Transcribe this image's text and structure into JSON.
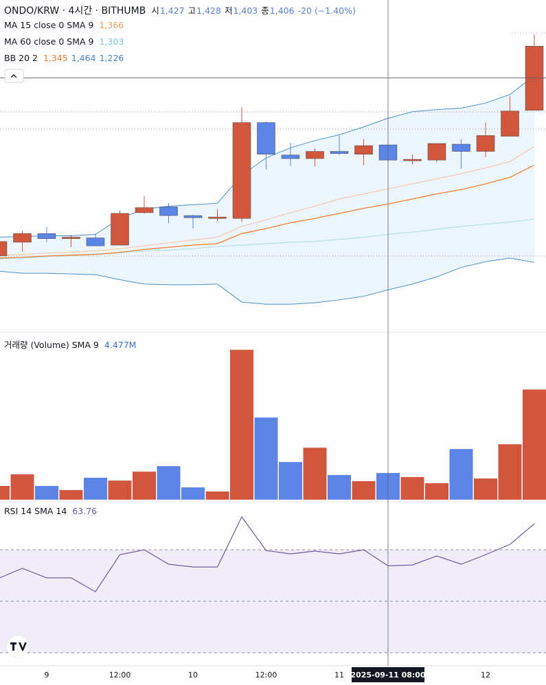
{
  "chart_data": [
    {
      "type": "candlestick",
      "legend": {
        "symbol": "ONDO/KRW · 4시간 · BITHUMB",
        "ohlc": [
          {
            "label": "시",
            "value": "1,427"
          },
          {
            "label": "고",
            "value": "1,428"
          },
          {
            "label": "저",
            "value": "1,403"
          },
          {
            "label": "종",
            "value": "1,406"
          }
        ],
        "change": "-20 (−1.40%)",
        "indicators": [
          {
            "label": "MA 15 close 0 SMA 9",
            "values": [
              {
                "text": "1,366",
                "color": "#e8a05a"
              }
            ]
          },
          {
            "label": "MA 60 close 0 SMA 9",
            "values": [
              {
                "text": "1,303",
                "color": "#7cc8da"
              }
            ]
          },
          {
            "label": "BB 20 2",
            "values": [
              {
                "text": "1,345",
                "color": "#f0802f"
              },
              {
                "text": "1,464",
                "color": "#4a86cf"
              },
              {
                "text": "1,226",
                "color": "#4a86cf"
              }
            ]
          }
        ]
      },
      "categories": [
        null,
        null,
        "9",
        null,
        null,
        "12:00",
        null,
        null,
        "10",
        null,
        null,
        "12:00",
        null,
        null,
        "11",
        null,
        "2025-09-11 08:00",
        null,
        null,
        null,
        "12",
        null,
        null
      ],
      "crosshair": {
        "index": 16,
        "price": 1520
      },
      "open": [
        1273,
        1292,
        1304,
        1297,
        1298,
        1288,
        1333,
        1341,
        1329,
        1325,
        1325,
        1458,
        1413,
        1408,
        1418,
        1414,
        1427,
        1405,
        1406,
        1428,
        1418,
        1439,
        1475
      ],
      "high": [
        1293,
        1308,
        1313,
        1302,
        1304,
        1336,
        1356,
        1346,
        1330,
        1338,
        1479,
        1460,
        1430,
        1422,
        1440,
        1435,
        1428,
        1414,
        1429,
        1435,
        1458,
        1495,
        1580
      ],
      "low": [
        1273,
        1279,
        1292,
        1285,
        1287,
        1288,
        1332,
        1318,
        1311,
        1321,
        1320,
        1393,
        1398,
        1397,
        1413,
        1399,
        1403,
        1400,
        1403,
        1394,
        1410,
        1439,
        1475
      ],
      "close": [
        1293,
        1304,
        1297,
        1299,
        1287,
        1332,
        1340,
        1329,
        1326,
        1327,
        1458,
        1414,
        1408,
        1418,
        1415,
        1426,
        1406,
        1407,
        1429,
        1418,
        1440,
        1474,
        1564
      ],
      "up_color": "#d0573d",
      "down_color": "#5b84e6",
      "ma": [
        {
          "color": "#f3c9ad",
          "values": [
            1274,
            1275,
            1277,
            1278,
            1280,
            1283,
            1287,
            1291,
            1295,
            1299,
            1314,
            1323,
            1333,
            1342,
            1352,
            1359,
            1366,
            1373,
            1380,
            1387,
            1395,
            1404,
            1425
          ]
        },
        {
          "color": "#b5e0e6",
          "values": [
            1269,
            1270,
            1272,
            1273,
            1276,
            1277,
            1280,
            1281,
            1283,
            1286,
            1288,
            1290,
            1292,
            1293,
            1296,
            1299,
            1303,
            1306,
            1310,
            1314,
            1317,
            1320,
            1324
          ]
        }
      ],
      "bb": {
        "fill": "#eef6fd",
        "basis": {
          "color": "#f0802f",
          "values": [
            1270,
            1271,
            1273,
            1274,
            1275,
            1278,
            1282,
            1285,
            1288,
            1290,
            1304,
            1311,
            1319,
            1325,
            1332,
            1339,
            1345,
            1352,
            1359,
            1365,
            1373,
            1382,
            1399
          ]
        },
        "upper": {
          "color": "#4a8fcf",
          "values": [
            1299,
            1300,
            1301,
            1301,
            1303,
            1325,
            1338,
            1342,
            1344,
            1346,
            1385,
            1409,
            1423,
            1433,
            1441,
            1452,
            1464,
            1473,
            1476,
            1478,
            1485,
            1497,
            1523
          ]
        },
        "lower": {
          "color": "#4a8fcf",
          "values": [
            1252,
            1249,
            1249,
            1248,
            1247,
            1240,
            1234,
            1233,
            1233,
            1234,
            1209,
            1206,
            1206,
            1208,
            1212,
            1217,
            1226,
            1234,
            1244,
            1257,
            1265,
            1270,
            1264
          ]
        }
      },
      "ylim": [
        1171,
        1628
      ]
    },
    {
      "type": "bar",
      "legend": {
        "label": "거래량 (Volume) SMA 9",
        "value": "4.477M"
      },
      "values": [
        1.34,
        2.48,
        1.34,
        0.94,
        2.14,
        1.87,
        2.74,
        3.28,
        1.2,
        0.8,
        14.65,
        8.03,
        3.68,
        5.08,
        2.41,
        1.81,
        2.61,
        2.21,
        1.61,
        4.95,
        2.07,
        5.42,
        10.77
      ],
      "ylim": [
        0,
        16.1
      ]
    },
    {
      "type": "line",
      "legend": {
        "label": "RSI 14 SMA 14",
        "value": "63.76"
      },
      "values": [
        58.8,
        62.8,
        59.1,
        59.1,
        53.7,
        68.1,
        70.0,
        64.4,
        63.3,
        63.3,
        82.8,
        69.7,
        68.4,
        69.5,
        68.4,
        70.0,
        63.76,
        64.1,
        67.6,
        64.4,
        68.1,
        72.1,
        80.1
      ],
      "color": "#6f5a9e",
      "levels": [
        70,
        50,
        30
      ],
      "band_fill": "#f1edf8",
      "ylim": [
        24.4,
        87.6
      ]
    }
  ]
}
